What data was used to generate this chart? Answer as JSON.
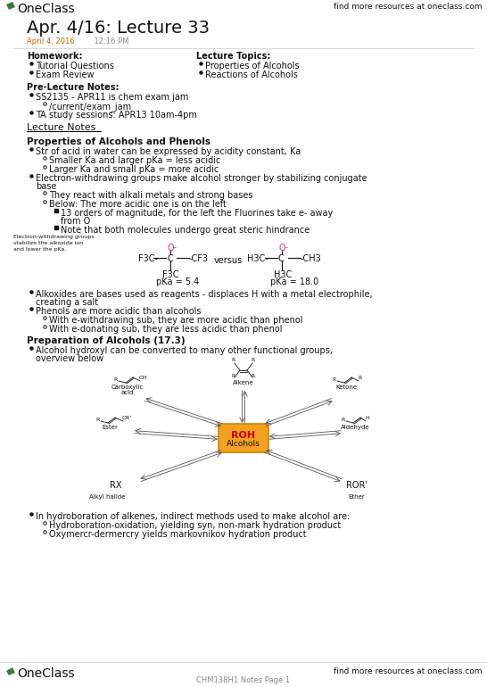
{
  "bg_color": "#ffffff",
  "green_color": "#3d7a3d",
  "gray_color": "#888888",
  "orange_color": "#cc6600",
  "pink_color": "#cc3366",
  "dark_color": "#111111",
  "title": "Apr. 4/16: Lecture 33",
  "subtitle_date": "April 4, 2016",
  "subtitle_time": "12:16 PM"
}
